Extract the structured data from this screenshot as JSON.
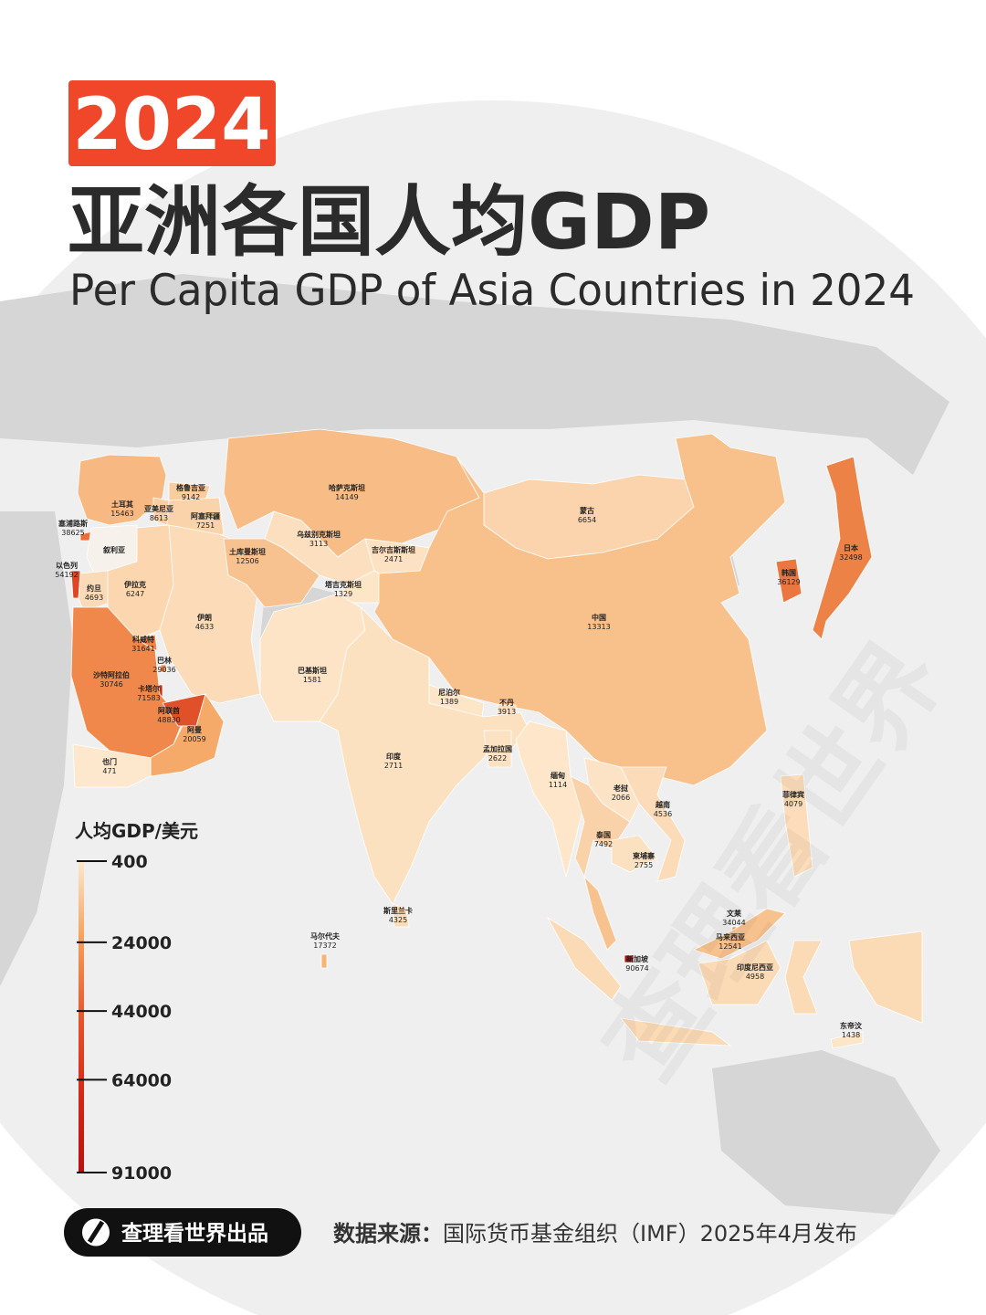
{
  "badge": "2024",
  "title": "亚洲各国人均GDP",
  "subtitle": "Per Capita GDP of Asia Countries in 2024",
  "legend": {
    "title": "人均GDP/美元",
    "ticks": [
      400,
      24000,
      44000,
      64000,
      91000
    ],
    "colors": [
      "#fde8cd",
      "#f4a15a",
      "#e4572c",
      "#d02a17",
      "#b5130f"
    ]
  },
  "countries": [
    {
      "name": "土耳其",
      "value": 15463
    },
    {
      "name": "亚美尼亚",
      "value": 8613
    },
    {
      "name": "格鲁吉亚",
      "value": 9142
    },
    {
      "name": "阿塞拜疆",
      "value": 7251
    },
    {
      "name": "塞浦路斯",
      "value": 38625
    },
    {
      "name": "叙利亚",
      "value": null
    },
    {
      "name": "以色列",
      "value": 54192
    },
    {
      "name": "约旦",
      "value": 4693
    },
    {
      "name": "伊拉克",
      "value": 6247
    },
    {
      "name": "伊朗",
      "value": 4633
    },
    {
      "name": "科威特",
      "value": 31641
    },
    {
      "name": "巴林",
      "value": 29036
    },
    {
      "name": "卡塔尔",
      "value": 71583
    },
    {
      "name": "沙特阿拉伯",
      "value": 30746
    },
    {
      "name": "阿联酋",
      "value": 48830
    },
    {
      "name": "阿曼",
      "value": 20059
    },
    {
      "name": "也门",
      "value": 471
    },
    {
      "name": "哈萨克斯坦",
      "value": 14149
    },
    {
      "name": "乌兹别克斯坦",
      "value": 3113
    },
    {
      "name": "土库曼斯坦",
      "value": 12506
    },
    {
      "name": "吉尔吉斯斯坦",
      "value": 2471
    },
    {
      "name": "塔吉克斯坦",
      "value": 1329
    },
    {
      "name": "蒙古",
      "value": 6654
    },
    {
      "name": "中国",
      "value": 13313
    },
    {
      "name": "韩国",
      "value": 36129
    },
    {
      "name": "日本",
      "value": 32498
    },
    {
      "name": "巴基斯坦",
      "value": 1581
    },
    {
      "name": "尼泊尔",
      "value": 1389
    },
    {
      "name": "不丹",
      "value": 3913
    },
    {
      "name": "印度",
      "value": 2711
    },
    {
      "name": "孟加拉国",
      "value": 2622
    },
    {
      "name": "缅甸",
      "value": 1114
    },
    {
      "name": "老挝",
      "value": 2066
    },
    {
      "name": "越南",
      "value": 4536
    },
    {
      "name": "泰国",
      "value": 7492
    },
    {
      "name": "柬埔寨",
      "value": 2755
    },
    {
      "name": "菲律宾",
      "value": 4079
    },
    {
      "name": "斯里兰卡",
      "value": 4325
    },
    {
      "name": "马尔代夫",
      "value": 17372
    },
    {
      "name": "文莱",
      "value": 34044
    },
    {
      "name": "马来西亚",
      "value": 12541
    },
    {
      "name": "新加坡",
      "value": 90674
    },
    {
      "name": "印度尼西亚",
      "value": 4958
    },
    {
      "name": "东帝汶",
      "value": 1438
    }
  ],
  "watermark": "查理看世界",
  "footer": {
    "brand": "查理看世界出品",
    "source_label": "数据来源：",
    "source": "国际货币基金组织（IMF）2025年4月发布"
  }
}
